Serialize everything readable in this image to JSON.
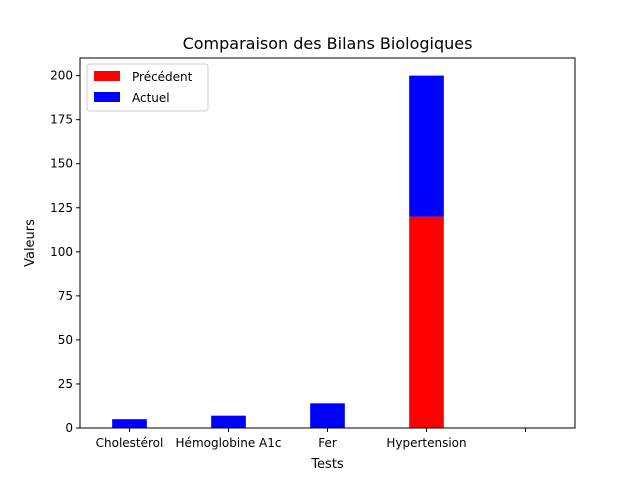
{
  "chart_data": {
    "type": "bar",
    "title": "Comparaison des Bilans Biologiques",
    "xlabel": "Tests",
    "ylabel": "Valeurs",
    "categories": [
      "Cholestérol",
      "Hémoglobine A1c",
      "Fer",
      "Hypertension",
      ""
    ],
    "ylim": [
      0,
      210
    ],
    "yticks": [
      0,
      25,
      50,
      75,
      100,
      125,
      150,
      175,
      200
    ],
    "stacked": true,
    "grid": false,
    "legend_position": "top-left",
    "series": [
      {
        "name": "Précédent",
        "color": "#ff0000",
        "values": [
          0,
          0,
          0,
          120,
          0
        ]
      },
      {
        "name": "Actuel",
        "color": "#0000ff",
        "values": [
          5,
          7,
          14,
          80,
          0
        ]
      }
    ]
  }
}
